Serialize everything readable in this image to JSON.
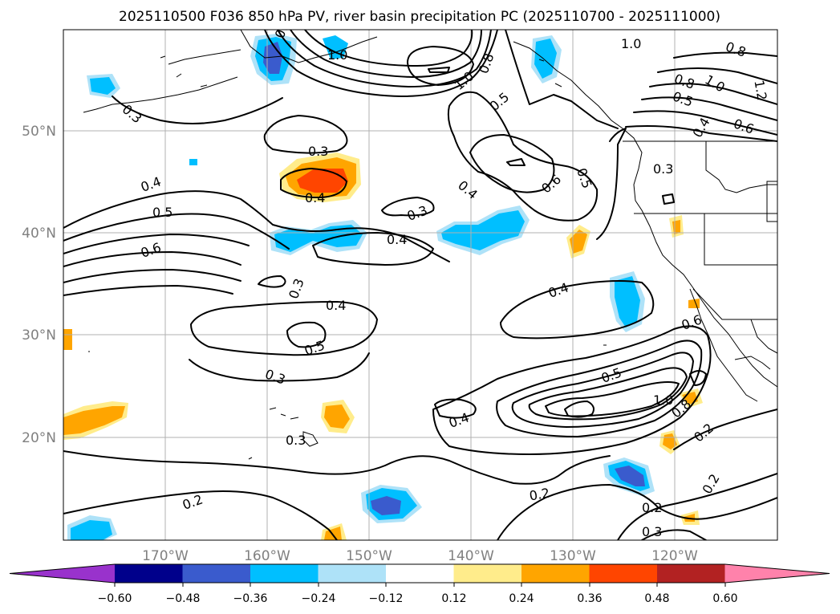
{
  "title": "2025110500 F036 850 hPa PV, river basin precipitation PC (2025110700 - 2025111000)",
  "map": {
    "lat_labels": [
      "50°N",
      "40°N",
      "30°N",
      "20°N"
    ],
    "lon_labels": [
      "170°W",
      "160°W",
      "150°W",
      "140°W",
      "130°W",
      "120°W"
    ],
    "contour_labels": [
      "1.0",
      "0.8",
      "0.3",
      "1.0",
      "0.8",
      "0.5",
      "1.0",
      "0.8",
      "0.8",
      "1.0",
      "1.2",
      "0.5",
      "0.6",
      "0.4",
      "0.3",
      "0.4",
      "0.5",
      "0.6",
      "0.4",
      "0.4",
      "0.3",
      "0.4",
      "0.6",
      "0.5",
      "0.3",
      "0.3",
      "0.4",
      "0.5",
      "0.4",
      "0.6",
      "0.3",
      "0.5",
      "1.0",
      "0.8",
      "0.4",
      "0.3",
      "0.2",
      "0.2",
      "0.2",
      "0.2",
      "0.3"
    ]
  },
  "colorbar": {
    "ticks": [
      "−0.60",
      "−0.48",
      "−0.36",
      "−0.24",
      "−0.12",
      "0.12",
      "0.24",
      "0.36",
      "0.48",
      "0.60"
    ],
    "colors": [
      "#9932cc",
      "#00008b",
      "#3a5bcd",
      "#00bfff",
      "#aee2f8",
      "#ffffff",
      "#ffec8b",
      "#ffa500",
      "#ff4500",
      "#b22222",
      "#ff82ab"
    ]
  }
}
